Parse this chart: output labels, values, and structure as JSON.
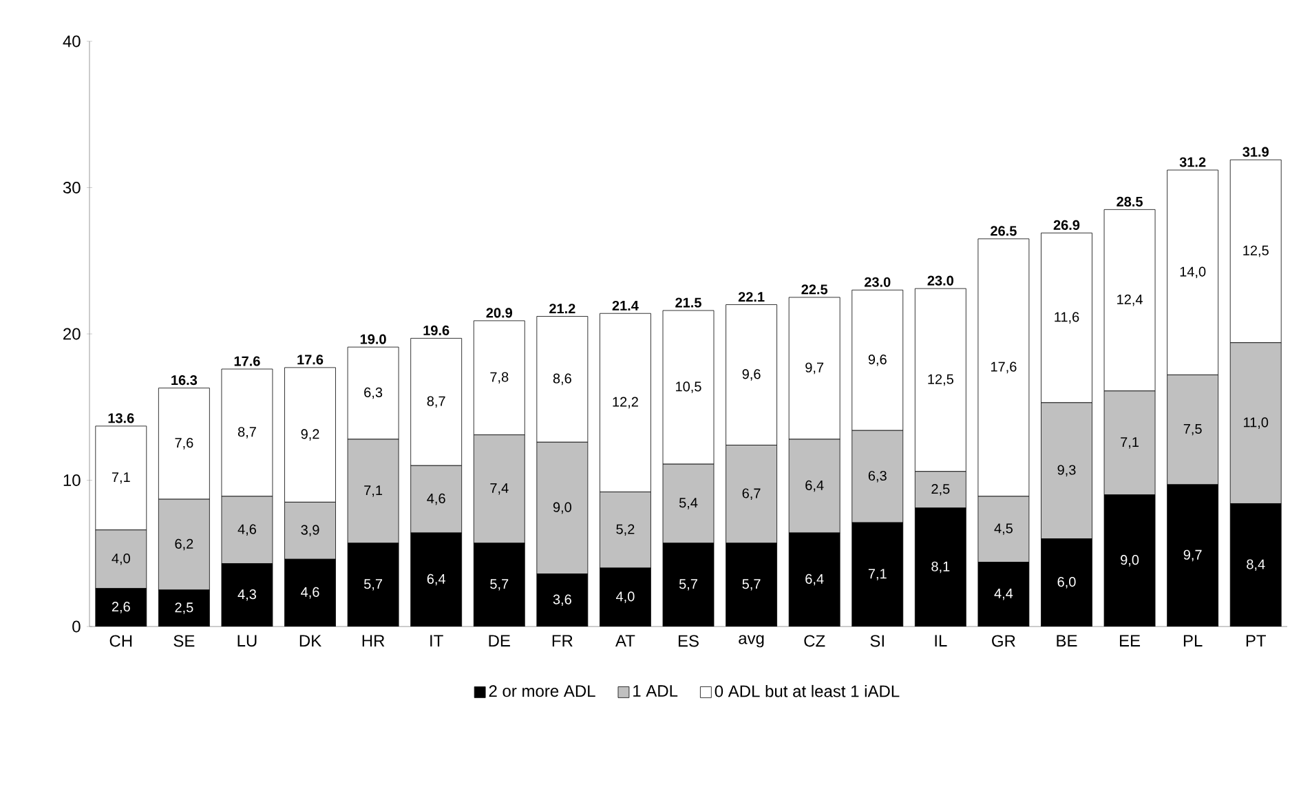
{
  "chart_data": {
    "type": "bar",
    "stacked": true,
    "categories": [
      "CH",
      "SE",
      "LU",
      "DK",
      "HR",
      "IT",
      "DE",
      "FR",
      "AT",
      "ES",
      "avg",
      "CZ",
      "SI",
      "IL",
      "GR",
      "BE",
      "EE",
      "PL",
      "PT"
    ],
    "series": [
      {
        "name": "2 or more ADL",
        "color": "#000000",
        "values": [
          2.6,
          2.5,
          4.3,
          4.6,
          5.7,
          6.4,
          5.7,
          3.6,
          4.0,
          5.7,
          5.7,
          6.4,
          7.1,
          8.1,
          4.4,
          6.0,
          9.0,
          9.7,
          8.4
        ],
        "value_labels": [
          "2,6",
          "2,5",
          "4,3",
          "4,6",
          "5,7",
          "6,4",
          "5,7",
          "3,6",
          "4,0",
          "5,7",
          "5,7",
          "6,4",
          "7,1",
          "8,1",
          "4,4",
          "6,0",
          "9,0",
          "9,7",
          "8,4"
        ]
      },
      {
        "name": "1 ADL",
        "color": "#c0c0c0",
        "values": [
          4.0,
          6.2,
          4.6,
          3.9,
          7.1,
          4.6,
          7.4,
          9.0,
          5.2,
          5.4,
          6.7,
          6.4,
          6.3,
          2.5,
          4.5,
          9.3,
          7.1,
          7.5,
          11.0
        ],
        "value_labels": [
          "4,0",
          "6,2",
          "4,6",
          "3,9",
          "7,1",
          "4,6",
          "7,4",
          "9,0",
          "5,2",
          "5,4",
          "6,7",
          "6,4",
          "6,3",
          "2,5",
          "4,5",
          "9,3",
          "7,1",
          "7,5",
          "11,0"
        ]
      },
      {
        "name": "0 ADL but at least 1 iADL",
        "color": "#ffffff",
        "values": [
          7.1,
          7.6,
          8.7,
          9.2,
          6.3,
          8.7,
          7.8,
          8.6,
          12.2,
          10.5,
          9.6,
          9.7,
          9.6,
          12.5,
          17.6,
          11.6,
          12.4,
          14.0,
          12.5
        ],
        "value_labels": [
          "7,1",
          "7,6",
          "8,7",
          "9,2",
          "6,3",
          "8,7",
          "7,8",
          "8,6",
          "12,2",
          "10,5",
          "9,6",
          "9,7",
          "9,6",
          "12,5",
          "17,6",
          "11,6",
          "12,4",
          "14,0",
          "12,5"
        ]
      }
    ],
    "totals": [
      "13.6",
      "16.3",
      "17.6",
      "17.6",
      "19.0",
      "19.6",
      "20.9",
      "21.2",
      "21.4",
      "21.5",
      "22.1",
      "22.5",
      "23.0",
      "23.0",
      "26.5",
      "26.9",
      "28.5",
      "31.2",
      "31.9"
    ],
    "ylim": [
      0,
      40
    ],
    "yticks": [
      0,
      10,
      20,
      30,
      40
    ],
    "grid": false,
    "legend": "bottom"
  }
}
